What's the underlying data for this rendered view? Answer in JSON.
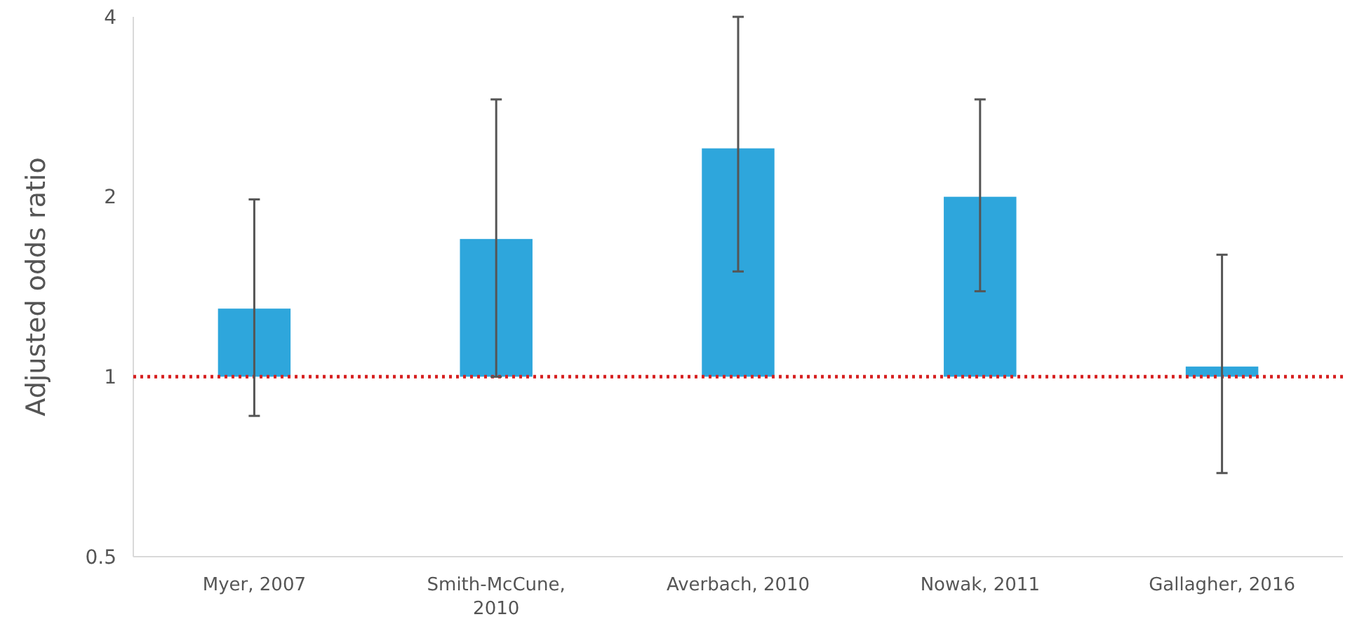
{
  "chart_data": {
    "type": "bar",
    "ylabel": "Adjusted odds ratio",
    "categories": [
      "Myer, 2007",
      "Smith-McCune, 2010",
      "Averbach, 2010",
      "Nowak, 2011",
      "Gallagher, 2016"
    ],
    "base": [
      1,
      1,
      1,
      1,
      1
    ],
    "values": [
      0.3,
      0.7,
      1.41,
      1.0,
      0.04
    ],
    "errors": [
      [
        0.86,
        1.98
      ],
      [
        1.0,
        2.91
      ],
      [
        1.5,
        4.0
      ],
      [
        1.39,
        2.91
      ],
      [
        0.69,
        1.6
      ]
    ],
    "color": "#2ea6dc",
    "log": "y",
    "ylim": [
      0.5,
      4
    ],
    "yticks": [
      0.5,
      1,
      2,
      4
    ],
    "grid": false,
    "ref_lines": [
      {
        "axis": "y",
        "value": 1,
        "color": "#d62020",
        "line_style": "dotted"
      }
    ]
  }
}
